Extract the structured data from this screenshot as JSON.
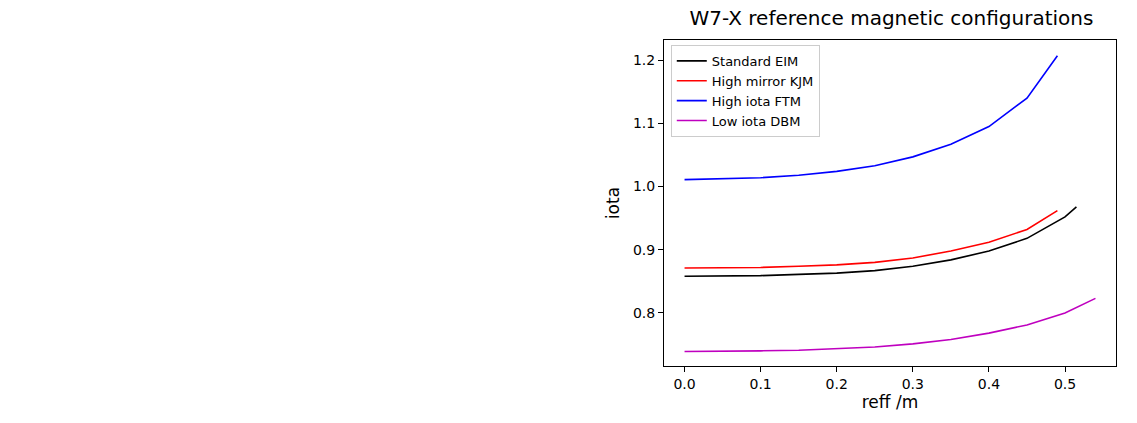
{
  "chart_data": {
    "type": "line",
    "title": "W7-X reference magnetic configurations",
    "x_label": "reff /m",
    "y_label": "iota",
    "xlim": [
      -0.027,
      0.567
    ],
    "ylim": [
      0.716,
      1.232
    ],
    "xticks": [
      {
        "value": 0,
        "label": "0.0"
      },
      0.1,
      0.2,
      0.3,
      0.4,
      0.5
    ],
    "yticks": [
      0.8,
      0.9,
      {
        "value": 1,
        "label": "1.0"
      },
      1.1,
      1.2
    ],
    "grid": false,
    "legend": "upper left",
    "series": [
      {
        "name": "Standard EIM",
        "color": "#000000",
        "x": [
          0,
          0.05,
          0.1,
          0.15,
          0.2,
          0.25,
          0.3,
          0.35,
          0.4,
          0.45,
          0.5,
          0.515
        ],
        "values": [
          0.858,
          0.858,
          0.859,
          0.861,
          0.863,
          0.867,
          0.874,
          0.884,
          0.898,
          0.918,
          0.952,
          0.968
        ]
      },
      {
        "name": "High mirror KJM",
        "color": "#ff0000",
        "x": [
          0,
          0.05,
          0.1,
          0.15,
          0.2,
          0.25,
          0.3,
          0.35,
          0.4,
          0.45,
          0.49
        ],
        "values": [
          0.871,
          0.871,
          0.872,
          0.874,
          0.876,
          0.88,
          0.887,
          0.898,
          0.912,
          0.932,
          0.962
        ]
      },
      {
        "name": "High iota FTM",
        "color": "#0000ff",
        "x": [
          0,
          0.05,
          0.1,
          0.15,
          0.2,
          0.25,
          0.3,
          0.35,
          0.4,
          0.45,
          0.49
        ],
        "values": [
          1.011,
          1.012,
          1.014,
          1.018,
          1.024,
          1.033,
          1.047,
          1.067,
          1.095,
          1.14,
          1.207
        ]
      },
      {
        "name": "Low iota DBM",
        "color": "#bf00bf",
        "x": [
          0,
          0.05,
          0.1,
          0.15,
          0.2,
          0.25,
          0.3,
          0.35,
          0.4,
          0.45,
          0.5,
          0.54
        ],
        "values": [
          0.739,
          0.739,
          0.74,
          0.741,
          0.743,
          0.746,
          0.751,
          0.758,
          0.768,
          0.781,
          0.8,
          0.823
        ]
      }
    ]
  }
}
